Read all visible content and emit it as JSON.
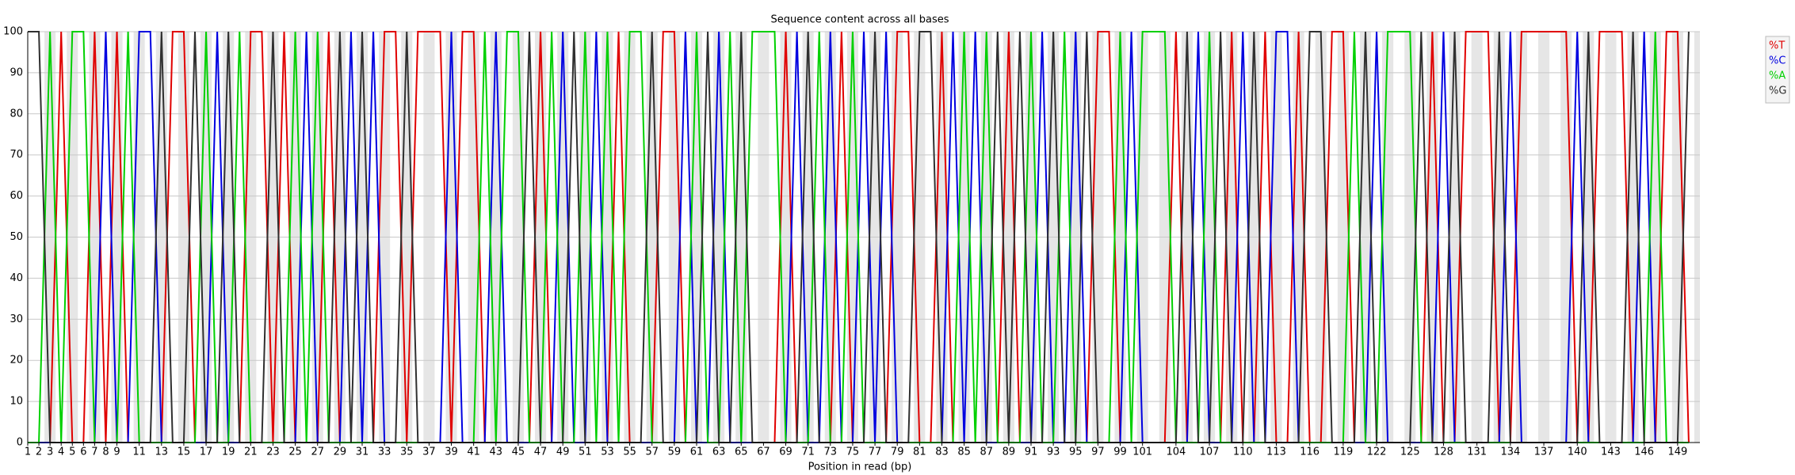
{
  "chart_data": {
    "type": "line",
    "title": "Sequence content across all bases",
    "x_label": "Position in read (bp)",
    "x": [
      1,
      2,
      3,
      4,
      5,
      6,
      7,
      8,
      9,
      10,
      11,
      12,
      13,
      14,
      15,
      16,
      17,
      18,
      19,
      20,
      21,
      22,
      23,
      24,
      25,
      26,
      27,
      28,
      29,
      30,
      31,
      32,
      33,
      34,
      35,
      36,
      37,
      38,
      39,
      40,
      41,
      42,
      43,
      44,
      45,
      46,
      47,
      48,
      49,
      50,
      51,
      52,
      53,
      54,
      55,
      56,
      57,
      58,
      59,
      60,
      61,
      62,
      63,
      64,
      65,
      66,
      67,
      68,
      69,
      70,
      71,
      72,
      73,
      74,
      75,
      76,
      77,
      78,
      79,
      80,
      81,
      82,
      83,
      84,
      85,
      86,
      87,
      88,
      89,
      90,
      91,
      92,
      93,
      94,
      95,
      96,
      97,
      98,
      99,
      100,
      101,
      102,
      103,
      104,
      105,
      106,
      107,
      108,
      109,
      110,
      111,
      112,
      113,
      114,
      115,
      116,
      117,
      118,
      119,
      120,
      121,
      122,
      123,
      124,
      125,
      126,
      127,
      128,
      129,
      130,
      131,
      132,
      133,
      134,
      135,
      136,
      137,
      138,
      139,
      140,
      141,
      142,
      143,
      144,
      145,
      146,
      147,
      148,
      149,
      150
    ],
    "series": [
      {
        "name": "%T",
        "color": "#e00000",
        "values": [
          0,
          0,
          0,
          100,
          0,
          0,
          100,
          0,
          100,
          0,
          0,
          0,
          0,
          100,
          100,
          0,
          0,
          0,
          0,
          0,
          100,
          100,
          0,
          100,
          0,
          0,
          0,
          100,
          0,
          0,
          0,
          0,
          100,
          100,
          0,
          100,
          100,
          100,
          0,
          100,
          100,
          0,
          0,
          0,
          0,
          0,
          100,
          0,
          0,
          0,
          0,
          0,
          0,
          100,
          0,
          0,
          0,
          100,
          100,
          0,
          0,
          0,
          0,
          0,
          0,
          0,
          0,
          0,
          100,
          0,
          0,
          0,
          0,
          100,
          0,
          0,
          0,
          0,
          100,
          100,
          0,
          0,
          100,
          0,
          0,
          0,
          0,
          0,
          100,
          0,
          0,
          0,
          0,
          0,
          0,
          0,
          100,
          100,
          0,
          0,
          0,
          0,
          0,
          100,
          0,
          0,
          0,
          0,
          100,
          0,
          0,
          100,
          0,
          0,
          100,
          0,
          0,
          100,
          100,
          0,
          0,
          0,
          0,
          0,
          0,
          0,
          100,
          0,
          0,
          100,
          100,
          100,
          0,
          0,
          100,
          100,
          100,
          100,
          100,
          0,
          0,
          100,
          100,
          100,
          0,
          0,
          0,
          100,
          100,
          0
        ]
      },
      {
        "name": "%C",
        "color": "#0000e0",
        "values": [
          0,
          0,
          0,
          0,
          0,
          0,
          0,
          100,
          0,
          0,
          100,
          100,
          0,
          0,
          0,
          0,
          0,
          100,
          0,
          0,
          0,
          0,
          0,
          0,
          0,
          100,
          0,
          0,
          0,
          100,
          0,
          100,
          0,
          0,
          0,
          0,
          0,
          0,
          100,
          0,
          0,
          0,
          100,
          0,
          0,
          0,
          0,
          0,
          100,
          0,
          0,
          100,
          0,
          0,
          0,
          0,
          0,
          0,
          0,
          100,
          0,
          0,
          100,
          0,
          0,
          0,
          0,
          0,
          0,
          100,
          0,
          0,
          100,
          0,
          0,
          100,
          0,
          100,
          0,
          0,
          0,
          0,
          0,
          100,
          0,
          100,
          0,
          0,
          0,
          0,
          0,
          100,
          0,
          0,
          100,
          0,
          0,
          0,
          0,
          100,
          0,
          0,
          0,
          0,
          0,
          100,
          0,
          0,
          0,
          100,
          0,
          0,
          100,
          100,
          0,
          0,
          0,
          0,
          0,
          0,
          0,
          100,
          0,
          0,
          0,
          0,
          0,
          100,
          0,
          0,
          0,
          0,
          0,
          100,
          0,
          0,
          0,
          0,
          0,
          100,
          0,
          0,
          0,
          0,
          0,
          100,
          0,
          0,
          0,
          0
        ]
      },
      {
        "name": "%A",
        "color": "#00d000",
        "values": [
          0,
          0,
          100,
          0,
          100,
          100,
          0,
          0,
          0,
          100,
          0,
          0,
          0,
          0,
          0,
          0,
          100,
          0,
          0,
          100,
          0,
          0,
          0,
          0,
          100,
          0,
          100,
          0,
          0,
          0,
          0,
          0,
          0,
          0,
          0,
          0,
          0,
          0,
          0,
          0,
          0,
          100,
          0,
          100,
          100,
          0,
          0,
          100,
          0,
          0,
          100,
          0,
          100,
          0,
          100,
          100,
          0,
          0,
          0,
          0,
          100,
          0,
          0,
          100,
          0,
          100,
          100,
          100,
          0,
          0,
          0,
          100,
          0,
          0,
          100,
          0,
          0,
          0,
          0,
          0,
          0,
          0,
          0,
          0,
          100,
          0,
          100,
          0,
          0,
          0,
          100,
          0,
          0,
          100,
          0,
          0,
          0,
          0,
          100,
          0,
          100,
          100,
          100,
          0,
          0,
          0,
          100,
          0,
          0,
          0,
          0,
          0,
          0,
          0,
          0,
          0,
          0,
          0,
          0,
          100,
          0,
          0,
          100,
          100,
          100,
          0,
          0,
          0,
          0,
          0,
          0,
          0,
          0,
          0,
          0,
          0,
          0,
          0,
          0,
          0,
          0,
          0,
          0,
          0,
          0,
          0,
          100,
          0,
          0,
          0
        ]
      },
      {
        "name": "%G",
        "color": "#303030",
        "values": [
          100,
          100,
          0,
          0,
          0,
          0,
          0,
          0,
          0,
          0,
          0,
          0,
          100,
          0,
          0,
          100,
          0,
          0,
          100,
          0,
          0,
          0,
          100,
          0,
          0,
          0,
          0,
          0,
          100,
          0,
          100,
          0,
          0,
          0,
          100,
          0,
          0,
          0,
          0,
          0,
          0,
          0,
          0,
          0,
          0,
          100,
          0,
          0,
          0,
          100,
          0,
          0,
          0,
          0,
          0,
          0,
          100,
          0,
          0,
          0,
          0,
          100,
          0,
          0,
          100,
          0,
          0,
          0,
          0,
          0,
          100,
          0,
          0,
          0,
          0,
          0,
          100,
          0,
          0,
          0,
          100,
          100,
          0,
          0,
          0,
          0,
          0,
          100,
          0,
          100,
          0,
          0,
          100,
          0,
          0,
          100,
          0,
          0,
          0,
          0,
          0,
          0,
          0,
          0,
          100,
          0,
          0,
          100,
          0,
          0,
          100,
          0,
          0,
          0,
          0,
          100,
          100,
          0,
          0,
          0,
          100,
          0,
          0,
          0,
          0,
          100,
          0,
          0,
          100,
          0,
          0,
          0,
          100,
          0,
          0,
          0,
          0,
          0,
          0,
          0,
          100,
          0,
          0,
          0,
          100,
          0,
          0,
          0,
          0,
          100
        ]
      }
    ],
    "xlim": [
      1,
      151
    ],
    "xticks": [
      1,
      2,
      3,
      4,
      5,
      6,
      7,
      8,
      9,
      11,
      13,
      15,
      17,
      19,
      21,
      23,
      25,
      27,
      29,
      31,
      33,
      35,
      37,
      39,
      41,
      43,
      45,
      47,
      49,
      51,
      53,
      55,
      57,
      59,
      61,
      63,
      65,
      67,
      69,
      71,
      73,
      75,
      77,
      79,
      81,
      83,
      85,
      87,
      89,
      91,
      93,
      95,
      97,
      99,
      101,
      104,
      107,
      110,
      113,
      116,
      119,
      122,
      125,
      128,
      131,
      134,
      137,
      140,
      143,
      146,
      149
    ],
    "ylim": [
      0,
      100
    ],
    "yticks": [
      0,
      10,
      20,
      30,
      40,
      50,
      60,
      70,
      80,
      90,
      100
    ],
    "grid": true,
    "legend": "top-right"
  }
}
